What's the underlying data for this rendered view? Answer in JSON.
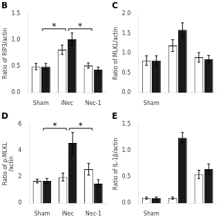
{
  "chart_data": [
    {
      "type": "bar",
      "title": "B",
      "ylabel": "Ratio of RIP3/actin",
      "categories": [
        "Sham",
        "iNec",
        "Nec-1"
      ],
      "series": [
        {
          "color": "#ffffff",
          "values": [
            0.5,
            0.82,
            0.52
          ],
          "errors": [
            0.06,
            0.09,
            0.05
          ]
        },
        {
          "color": "#1a1a1a",
          "values": [
            0.5,
            1.02,
            0.44
          ],
          "errors": [
            0.06,
            0.12,
            0.05
          ]
        }
      ],
      "ylim": [
        0,
        1.5
      ],
      "yticks": [
        {
          "value": 0,
          "label": "0.0"
        },
        0.5,
        {
          "value": 1,
          "label": "1.0"
        },
        1.5
      ],
      "grid": false,
      "annotations": [
        {
          "text": "*",
          "categories": [
            "Sham",
            "iNec"
          ]
        },
        {
          "text": "*",
          "categories": [
            "iNec",
            "Nec-1"
          ]
        }
      ]
    },
    {
      "type": "bar",
      "title": "C",
      "ylabel": "Ratio of MLKL/actin",
      "categories": [
        "Sham",
        null,
        null
      ],
      "series": [
        {
          "color": "#ffffff",
          "values": [
            0.82,
            1.2,
            0.9
          ],
          "errors": [
            0.12,
            0.15,
            0.12
          ]
        },
        {
          "color": "#1a1a1a",
          "values": [
            0.82,
            1.6,
            0.85
          ],
          "errors": [
            0.12,
            0.18,
            0.1
          ]
        }
      ],
      "ylim": [
        0,
        2.0
      ],
      "yticks": [
        {
          "value": 0,
          "label": "0.0"
        },
        0.5,
        {
          "value": 1,
          "label": "1.0"
        },
        1.5,
        {
          "value": 2,
          "label": "2.0"
        }
      ],
      "grid": false
    },
    {
      "type": "bar",
      "title": "D",
      "ylabel": "Ratio of p-MLKL\n/actin",
      "categories": [
        "Sham",
        "iNec",
        "Nec-1"
      ],
      "series": [
        {
          "color": "#ffffff",
          "values": [
            1.7,
            2.0,
            2.6
          ],
          "errors": [
            0.15,
            0.3,
            0.45
          ]
        },
        {
          "color": "#1a1a1a",
          "values": [
            1.7,
            4.6,
            1.5
          ],
          "errors": [
            0.2,
            0.8,
            0.3
          ]
        }
      ],
      "ylim": [
        0,
        6
      ],
      "yticks": [
        0,
        2,
        4,
        6
      ],
      "grid": false,
      "annotations": [
        {
          "text": "*",
          "categories": [
            "Sham",
            "iNec"
          ]
        },
        {
          "text": "*",
          "categories": [
            "iNec",
            "Nec-1"
          ]
        }
      ]
    },
    {
      "type": "bar",
      "title": "E",
      "ylabel": "Ratio of IL-1β/actin",
      "categories": [
        "Sham",
        null,
        null
      ],
      "series": [
        {
          "color": "#ffffff",
          "values": [
            0.1,
            0.1,
            0.55
          ],
          "errors": [
            0.02,
            0.02,
            0.08
          ]
        },
        {
          "color": "#1a1a1a",
          "values": [
            0.1,
            1.25,
            0.65
          ],
          "errors": [
            0.02,
            0.1,
            0.1
          ]
        }
      ],
      "ylim": [
        0,
        1.5
      ],
      "yticks": [
        {
          "value": 0,
          "label": "0.0"
        },
        0.5,
        {
          "value": 1,
          "label": "1.0"
        },
        1.5
      ],
      "grid": false
    }
  ]
}
